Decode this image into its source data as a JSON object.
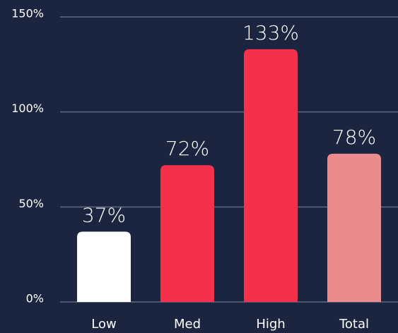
{
  "chart_data": {
    "type": "bar",
    "categories": [
      "Low",
      "Med",
      "High",
      "Total"
    ],
    "values": [
      37,
      72,
      133,
      78
    ],
    "value_labels": [
      "37%",
      "72%",
      "133%",
      "78%"
    ],
    "colors": [
      "#ffffff",
      "#f5304a",
      "#f5304a",
      "#ec8b8b"
    ],
    "ylim": [
      0,
      150
    ],
    "yticks": [
      {
        "value": 0,
        "label": "0%"
      },
      {
        "value": 50,
        "label": "50%"
      },
      {
        "value": 100,
        "label": "100%"
      },
      {
        "value": 150,
        "label": "150%"
      }
    ],
    "grid": true
  }
}
